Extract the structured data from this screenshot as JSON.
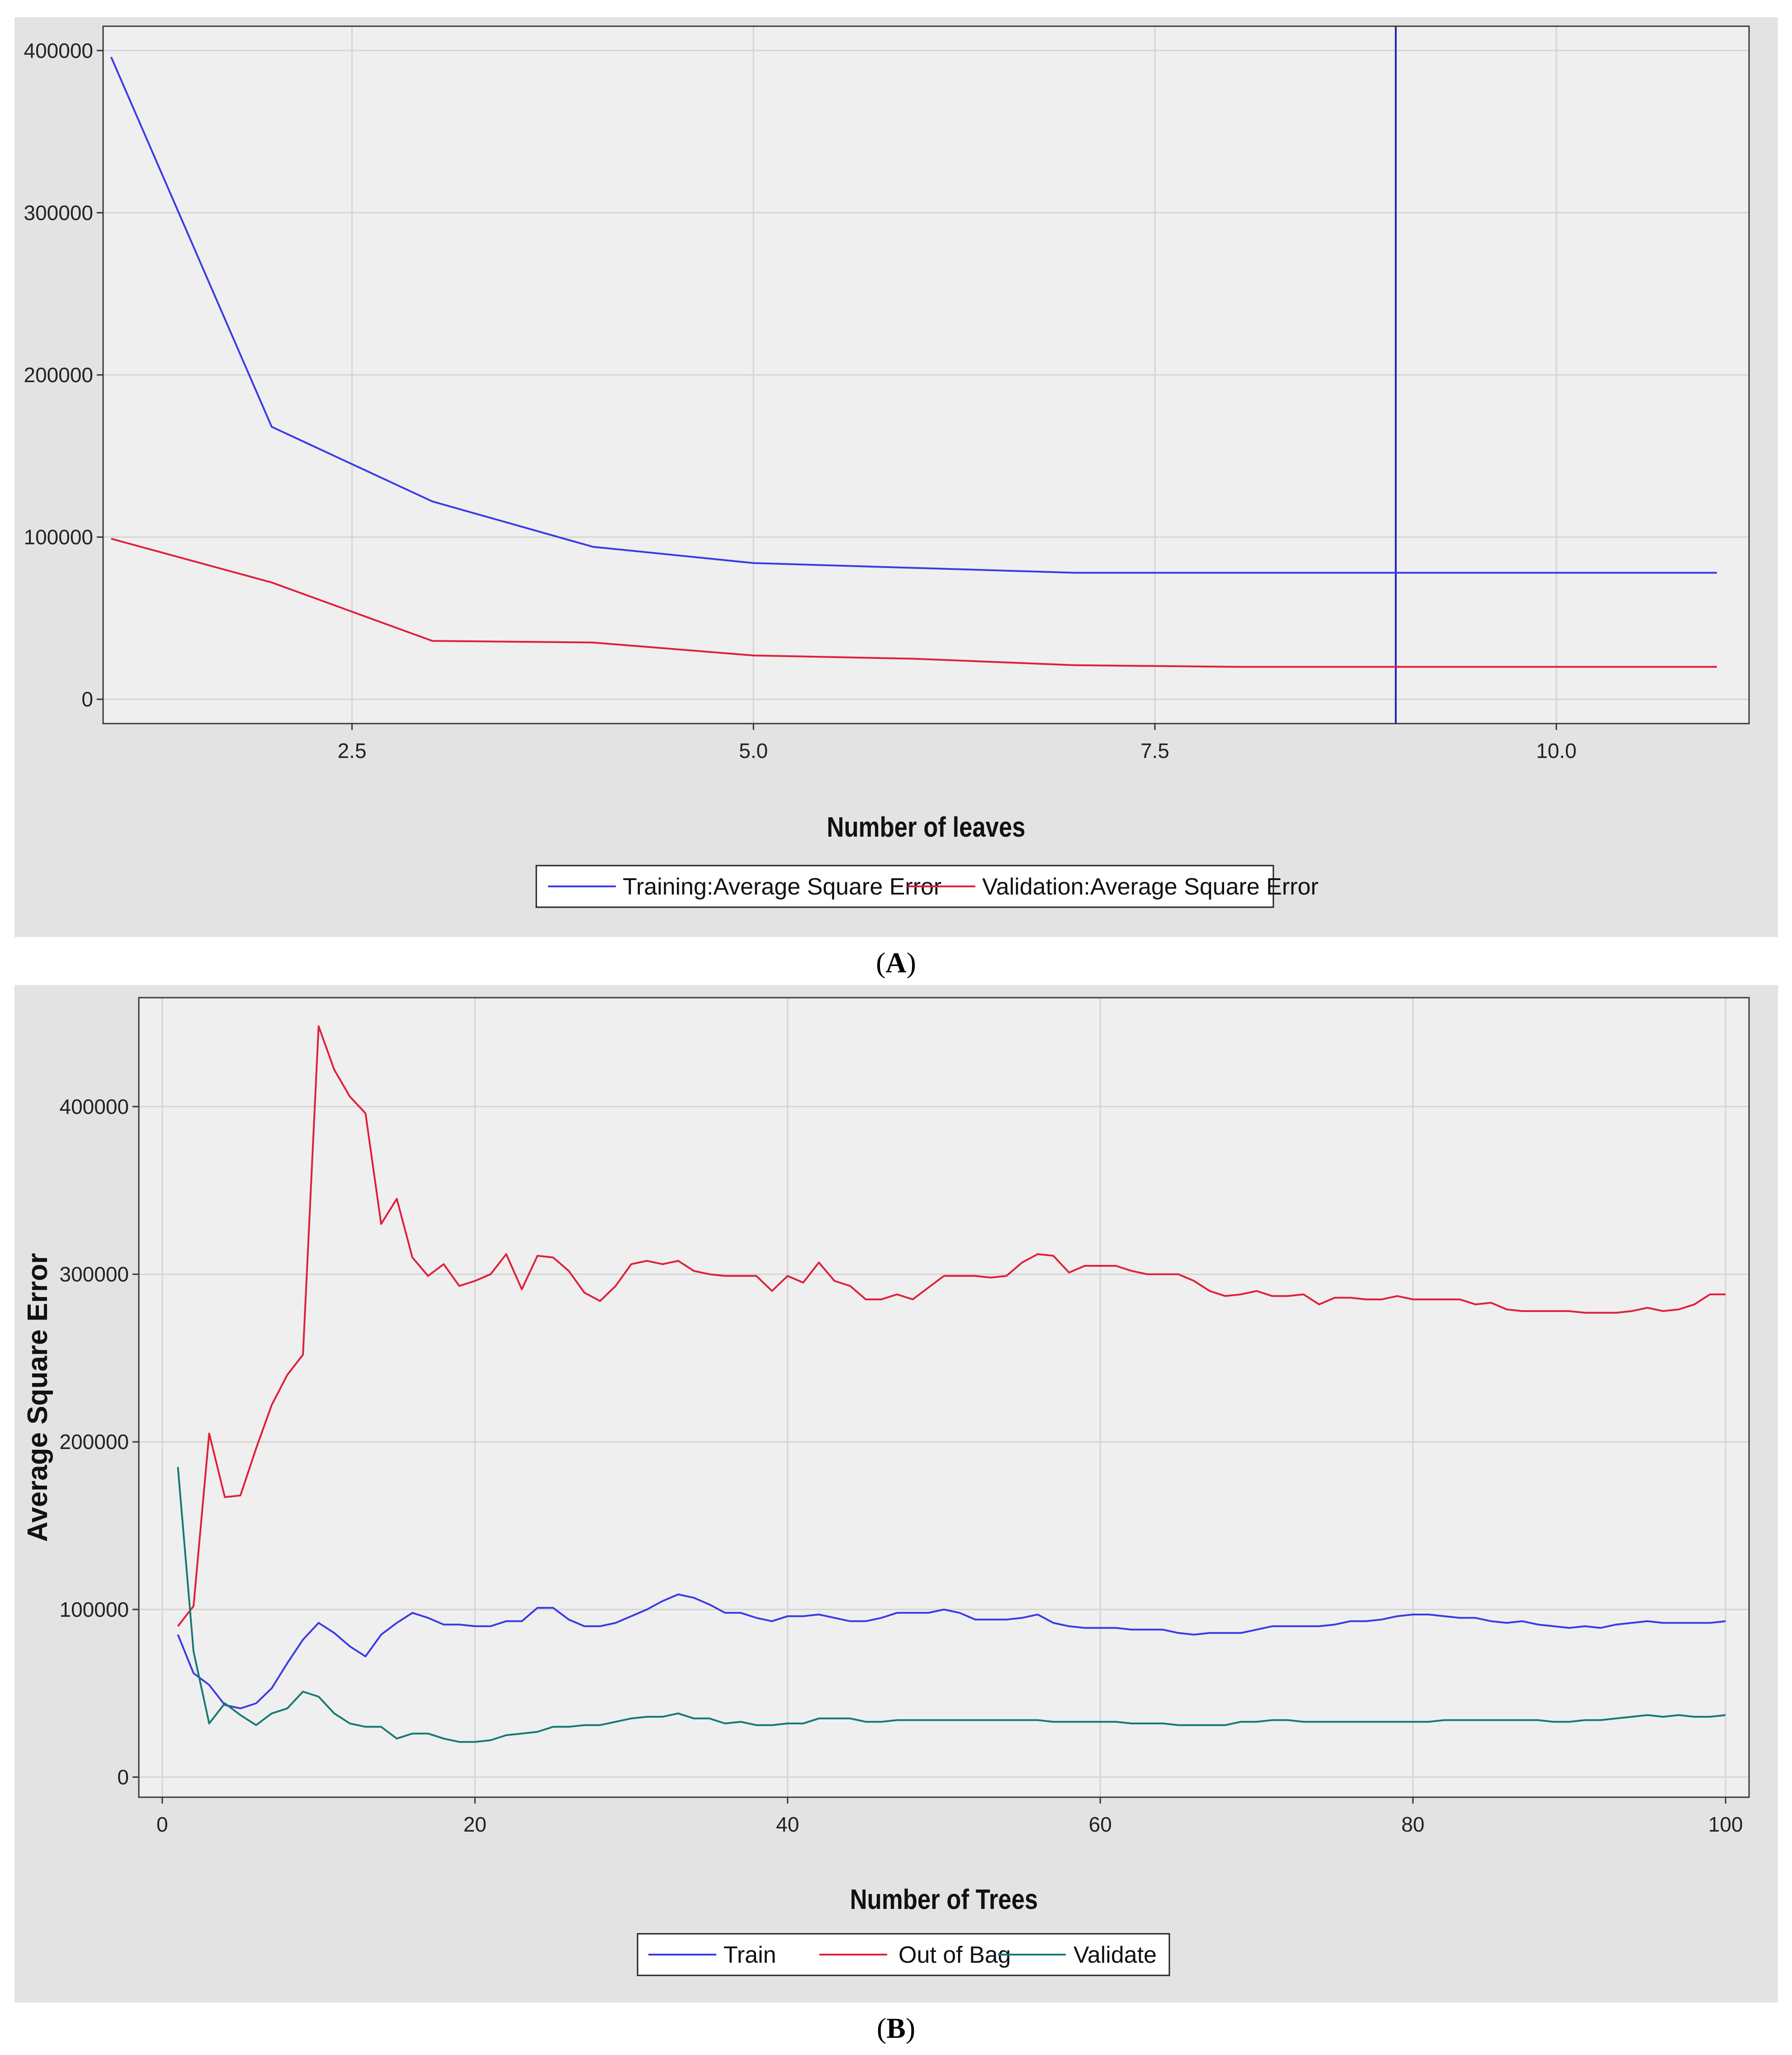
{
  "captions": {
    "a": "A",
    "b": "B"
  },
  "colors": {
    "training": "#3a3ae8",
    "validation": "#e0203a",
    "validate": "#147a72",
    "refline": "#2020b8"
  },
  "chart_data": [
    {
      "id": "A",
      "type": "line",
      "xlabel": "Number of leaves",
      "ylabel": "",
      "xlim": [
        0.95,
        11.2
      ],
      "ylim": [
        -15000,
        415000
      ],
      "xticks": [
        2.5,
        5.0,
        7.5,
        10.0
      ],
      "xtick_labels": [
        "2.5",
        "5.0",
        "7.5",
        "10.0"
      ],
      "yticks": [
        0,
        100000,
        200000,
        300000,
        400000
      ],
      "ytick_labels": [
        "0",
        "100000",
        "200000",
        "300000",
        "400000"
      ],
      "grid": true,
      "legend_position": "bottom-center",
      "reference_line_x": 9,
      "x": [
        1,
        2,
        3,
        4,
        5,
        6,
        7,
        8,
        9,
        10,
        11
      ],
      "series": [
        {
          "name": "Training:Average Square Error",
          "color_key": "training",
          "values": [
            396000,
            168000,
            122000,
            94000,
            84000,
            81000,
            78000,
            78000,
            78000,
            78000,
            78000
          ]
        },
        {
          "name": "Validation:Average Square Error",
          "color_key": "validation",
          "values": [
            99000,
            72000,
            36000,
            35000,
            27000,
            25000,
            21000,
            20000,
            20000,
            20000,
            20000
          ]
        }
      ]
    },
    {
      "id": "B",
      "type": "line",
      "xlabel": "Number of Trees",
      "ylabel": "Average Square Error",
      "xlim": [
        -1.5,
        101.5
      ],
      "ylim": [
        -12000,
        465000
      ],
      "xticks": [
        0,
        20,
        40,
        60,
        80,
        100
      ],
      "xtick_labels": [
        "0",
        "20",
        "40",
        "60",
        "80",
        "100"
      ],
      "yticks": [
        0,
        100000,
        200000,
        300000,
        400000
      ],
      "ytick_labels": [
        "0",
        "100000",
        "200000",
        "300000",
        "400000"
      ],
      "grid": true,
      "legend_position": "bottom-center",
      "x_start": 1,
      "series": [
        {
          "name": "Train",
          "color_key": "training",
          "values": [
            85000,
            62000,
            55000,
            43000,
            41000,
            44000,
            53000,
            68000,
            82000,
            92000,
            86000,
            78000,
            72000,
            85000,
            92000,
            98000,
            95000,
            91000,
            91000,
            90000,
            90000,
            93000,
            93000,
            101000,
            101000,
            94000,
            90000,
            90000,
            92000,
            96000,
            100000,
            105000,
            109000,
            107000,
            103000,
            98000,
            98000,
            95000,
            93000,
            96000,
            96000,
            97000,
            95000,
            93000,
            93000,
            95000,
            98000,
            98000,
            98000,
            100000,
            98000,
            94000,
            94000,
            94000,
            95000,
            97000,
            92000,
            90000,
            89000,
            89000,
            89000,
            88000,
            88000,
            88000,
            86000,
            85000,
            86000,
            86000,
            86000,
            88000,
            90000,
            90000,
            90000,
            90000,
            91000,
            93000,
            93000,
            94000,
            96000,
            97000,
            97000,
            96000,
            95000,
            95000,
            93000,
            92000,
            93000,
            91000,
            90000,
            89000,
            90000,
            89000,
            91000,
            92000,
            93000,
            92000,
            92000,
            92000,
            92000,
            93000
          ]
        },
        {
          "name": "Out of Bag",
          "color_key": "validation",
          "values": [
            90000,
            102000,
            205000,
            167000,
            168000,
            196000,
            222000,
            240000,
            252000,
            448000,
            422000,
            406000,
            396000,
            330000,
            345000,
            310000,
            299000,
            306000,
            293000,
            296000,
            300000,
            312000,
            291000,
            311000,
            310000,
            302000,
            289000,
            284000,
            293000,
            306000,
            308000,
            306000,
            308000,
            302000,
            300000,
            299000,
            299000,
            299000,
            290000,
            299000,
            295000,
            307000,
            296000,
            293000,
            285000,
            285000,
            288000,
            285000,
            292000,
            299000,
            299000,
            299000,
            298000,
            299000,
            307000,
            312000,
            311000,
            301000,
            305000,
            305000,
            305000,
            302000,
            300000,
            300000,
            300000,
            296000,
            290000,
            287000,
            288000,
            290000,
            287000,
            287000,
            288000,
            282000,
            286000,
            286000,
            285000,
            285000,
            287000,
            285000,
            285000,
            285000,
            285000,
            282000,
            283000,
            279000,
            278000,
            278000,
            278000,
            278000,
            277000,
            277000,
            277000,
            278000,
            280000,
            278000,
            279000,
            282000,
            288000,
            288000
          ]
        },
        {
          "name": "Validate",
          "color_key": "validate",
          "values": [
            185000,
            75000,
            32000,
            44000,
            37000,
            31000,
            38000,
            41000,
            51000,
            48000,
            38000,
            32000,
            30000,
            30000,
            23000,
            26000,
            26000,
            23000,
            21000,
            21000,
            22000,
            25000,
            26000,
            27000,
            30000,
            30000,
            31000,
            31000,
            33000,
            35000,
            36000,
            36000,
            38000,
            35000,
            35000,
            32000,
            33000,
            31000,
            31000,
            32000,
            32000,
            35000,
            35000,
            35000,
            33000,
            33000,
            34000,
            34000,
            34000,
            34000,
            34000,
            34000,
            34000,
            34000,
            34000,
            34000,
            33000,
            33000,
            33000,
            33000,
            33000,
            32000,
            32000,
            32000,
            31000,
            31000,
            31000,
            31000,
            33000,
            33000,
            34000,
            34000,
            33000,
            33000,
            33000,
            33000,
            33000,
            33000,
            33000,
            33000,
            33000,
            34000,
            34000,
            34000,
            34000,
            34000,
            34000,
            34000,
            33000,
            33000,
            34000,
            34000,
            35000,
            36000,
            37000,
            36000,
            37000,
            36000,
            36000,
            37000
          ]
        }
      ]
    }
  ]
}
